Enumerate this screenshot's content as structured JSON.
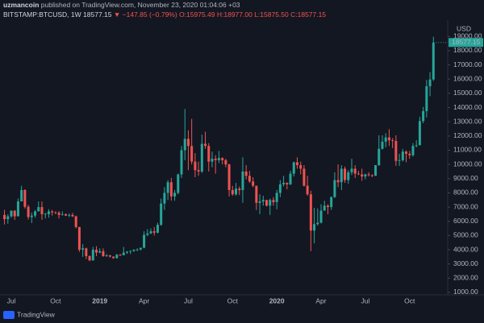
{
  "page": {
    "author": "uzmancoin",
    "published": "published on TradingView.com, November 23, 2020 01:04:06 +03",
    "watermark": "TradingView"
  },
  "chart_data": {
    "type": "candlestick",
    "symbol": "BITSTAMP:BTCUSD, 1W",
    "last": "18577.15",
    "change": "▼ −147.85 (−0.79%)",
    "quote_open": "O:15975.49",
    "quote_high": "H:18977.00",
    "quote_low": "L:15875.50",
    "quote_close": "C:18577.15",
    "currency": "USD",
    "up_color": "#26a69a",
    "down_color": "#ef5350",
    "grid": false,
    "ylim": [
      830,
      20150
    ],
    "yticks": [
      {
        "value": 1000,
        "label": "1000.00"
      },
      {
        "value": 2000,
        "label": "2000.00"
      },
      {
        "value": 3000,
        "label": "3000.00"
      },
      {
        "value": 4000,
        "label": "4000.00"
      },
      {
        "value": 5000,
        "label": "5000.00"
      },
      {
        "value": 6000,
        "label": "6000.00"
      },
      {
        "value": 7000,
        "label": "7000.00"
      },
      {
        "value": 8000,
        "label": "8000.00"
      },
      {
        "value": 9000,
        "label": "9000.00"
      },
      {
        "value": 10000,
        "label": "10000.00"
      },
      {
        "value": 11000,
        "label": "11000.00"
      },
      {
        "value": 12000,
        "label": "12000.00"
      },
      {
        "value": 13000,
        "label": "13000.00"
      },
      {
        "value": 14000,
        "label": "14000.00"
      },
      {
        "value": 15000,
        "label": "15000.00"
      },
      {
        "value": 16000,
        "label": "16000.00"
      },
      {
        "value": 17000,
        "label": "17000.00"
      },
      {
        "value": 18000,
        "label": "18000.00"
      },
      {
        "value": 19000,
        "label": "19000.00"
      }
    ],
    "categories": [
      null,
      null,
      "Jul",
      null,
      null,
      null,
      null,
      null,
      null,
      null,
      null,
      null,
      null,
      null,
      null,
      "Oct",
      null,
      null,
      null,
      null,
      null,
      null,
      null,
      null,
      null,
      null,
      null,
      null,
      "2019",
      null,
      null,
      null,
      null,
      null,
      null,
      null,
      null,
      null,
      null,
      null,
      null,
      "Apr",
      null,
      null,
      null,
      null,
      null,
      null,
      null,
      null,
      null,
      null,
      null,
      null,
      "Jul",
      null,
      null,
      null,
      null,
      null,
      null,
      null,
      null,
      null,
      null,
      null,
      null,
      "Oct",
      null,
      null,
      null,
      null,
      null,
      null,
      null,
      null,
      null,
      null,
      null,
      null,
      "2020",
      null,
      null,
      null,
      null,
      null,
      null,
      null,
      null,
      null,
      null,
      null,
      null,
      "Apr",
      null,
      null,
      null,
      null,
      null,
      null,
      null,
      null,
      null,
      null,
      null,
      null,
      "Jul",
      null,
      null,
      null,
      null,
      null,
      null,
      null,
      null,
      null,
      null,
      null,
      null,
      "Oct",
      null,
      null,
      null,
      null,
      null,
      null,
      null
    ],
    "open": [
      6450,
      6150,
      6350,
      6740,
      6350,
      7400,
      8200,
      7020,
      6300,
      6400,
      6700,
      7000,
      6500,
      6500,
      6700,
      6630,
      6600,
      6450,
      6500,
      6400,
      6450,
      6350,
      5600,
      4000,
      4100,
      3550,
      3250,
      4000,
      3800,
      3900,
      3550,
      3600,
      3520,
      3410,
      3650,
      3620,
      3800,
      3870,
      3920,
      4000,
      4020,
      4140,
      5050,
      5150,
      5300,
      5200,
      5750,
      7250,
      8000,
      8750,
      7750,
      8000,
      9300,
      11000,
      11800,
      11300,
      10200,
      9600,
      9500,
      11450,
      11300,
      10200,
      10400,
      10300,
      10450,
      10300,
      10000,
      8200,
      7900,
      8300,
      8200,
      9500,
      9200,
      8800,
      8500,
      7300,
      7400,
      7500,
      7100,
      7500,
      7350,
      8000,
      8600,
      8700,
      8600,
      9350,
      10150,
      9950,
      9700,
      8500,
      7900,
      5350,
      5800,
      5900,
      6750,
      7100,
      7000,
      7700,
      8900,
      8750,
      9700,
      8900,
      9450,
      9700,
      9350,
      9300,
      9150,
      9300,
      9250,
      9200,
      9950,
      11100,
      11600,
      11900,
      11700,
      11650,
      10250,
      10300,
      10900,
      10750,
      10650,
      11300,
      11350,
      13050,
      13750,
      15500,
      15975.49
    ],
    "high": [
      6800,
      6500,
      6780,
      6790,
      7600,
      8500,
      8250,
      7150,
      6620,
      6800,
      7400,
      7400,
      6600,
      6850,
      6800,
      6700,
      6720,
      6700,
      6550,
      6550,
      6600,
      6400,
      5600,
      4400,
      4150,
      3600,
      4200,
      4250,
      4100,
      4100,
      3700,
      3650,
      3530,
      3700,
      3700,
      4200,
      3900,
      3950,
      4030,
      4100,
      4150,
      5300,
      5450,
      5500,
      5600,
      5900,
      7600,
      8400,
      8900,
      9050,
      8200,
      9350,
      11300,
      13900,
      12400,
      13200,
      10800,
      10200,
      12100,
      12300,
      11500,
      10900,
      10650,
      10950,
      10500,
      10400,
      10050,
      8500,
      8700,
      8450,
      10500,
      9950,
      9550,
      9100,
      8500,
      7900,
      7800,
      7500,
      7600,
      7700,
      8200,
      8900,
      9200,
      8750,
      9550,
      10200,
      10500,
      10200,
      9950,
      9200,
      8150,
      6950,
      6900,
      7200,
      7450,
      7200,
      7750,
      9450,
      10000,
      9950,
      9850,
      9600,
      10400,
      9950,
      9550,
      9700,
      9350,
      9450,
      9300,
      9950,
      12050,
      12050,
      12200,
      12480,
      11850,
      12050,
      10750,
      11100,
      10990,
      10950,
      11500,
      11700,
      13350,
      14050,
      15950,
      16500,
      18977
    ],
    "low": [
      5780,
      5830,
      6250,
      6100,
      6350,
      7400,
      6900,
      6130,
      5880,
      6250,
      6700,
      6100,
      6200,
      6250,
      6400,
      6500,
      6200,
      6400,
      6380,
      6300,
      6300,
      5500,
      3850,
      3500,
      3350,
      3200,
      3230,
      3550,
      3750,
      3500,
      3500,
      3450,
      3370,
      3380,
      3550,
      3600,
      3700,
      3700,
      3850,
      3900,
      3950,
      4100,
      4950,
      5100,
      5000,
      5150,
      5700,
      6800,
      7500,
      7450,
      7450,
      7900,
      9050,
      10300,
      9600,
      10000,
      9100,
      9200,
      9400,
      11100,
      9500,
      9800,
      9350,
      10100,
      10000,
      9800,
      7750,
      7800,
      7800,
      7850,
      7300,
      8950,
      8700,
      8400,
      6800,
      6500,
      7100,
      7050,
      6450,
      7100,
      6850,
      7700,
      8450,
      8250,
      8550,
      9150,
      9700,
      9300,
      8450,
      7800,
      3900,
      4450,
      5700,
      5850,
      6750,
      6500,
      6800,
      7650,
      8400,
      8200,
      8700,
      8650,
      9250,
      9050,
      9250,
      8850,
      8950,
      9150,
      9100,
      9200,
      9900,
      11050,
      11200,
      11300,
      11150,
      9900,
      9900,
      10200,
      10150,
      10400,
      10550,
      11200,
      11400,
      12900,
      13300,
      14800,
      15875.5
    ],
    "close": [
      6150,
      6350,
      6740,
      6350,
      7400,
      8200,
      7020,
      6300,
      6400,
      6700,
      7000,
      6500,
      6520,
      6700,
      6630,
      6600,
      6450,
      6500,
      6400,
      6450,
      6350,
      5600,
      4000,
      4100,
      3550,
      3250,
      4000,
      3800,
      3900,
      3550,
      3600,
      3520,
      3410,
      3650,
      3620,
      3800,
      3870,
      3920,
      4000,
      4020,
      4140,
      5050,
      5150,
      5300,
      5200,
      5750,
      7250,
      8000,
      8750,
      7750,
      8000,
      9300,
      11000,
      11800,
      11300,
      10200,
      9600,
      9500,
      11450,
      11300,
      10200,
      10400,
      10300,
      10450,
      10300,
      10000,
      8200,
      7900,
      8300,
      8200,
      9500,
      9200,
      8800,
      8500,
      7300,
      7400,
      7500,
      7100,
      7500,
      7350,
      8000,
      8600,
      8700,
      8600,
      9350,
      10150,
      9950,
      9700,
      8500,
      7900,
      5350,
      5800,
      5900,
      6750,
      7100,
      7000,
      7700,
      8900,
      8750,
      9700,
      8900,
      9450,
      9700,
      9350,
      9300,
      9150,
      9300,
      9250,
      9200,
      9950,
      11100,
      11600,
      11900,
      11700,
      11650,
      10250,
      10300,
      10900,
      10750,
      10650,
      11300,
      11350,
      13050,
      13750,
      15500,
      15975.49,
      18577.15
    ]
  }
}
